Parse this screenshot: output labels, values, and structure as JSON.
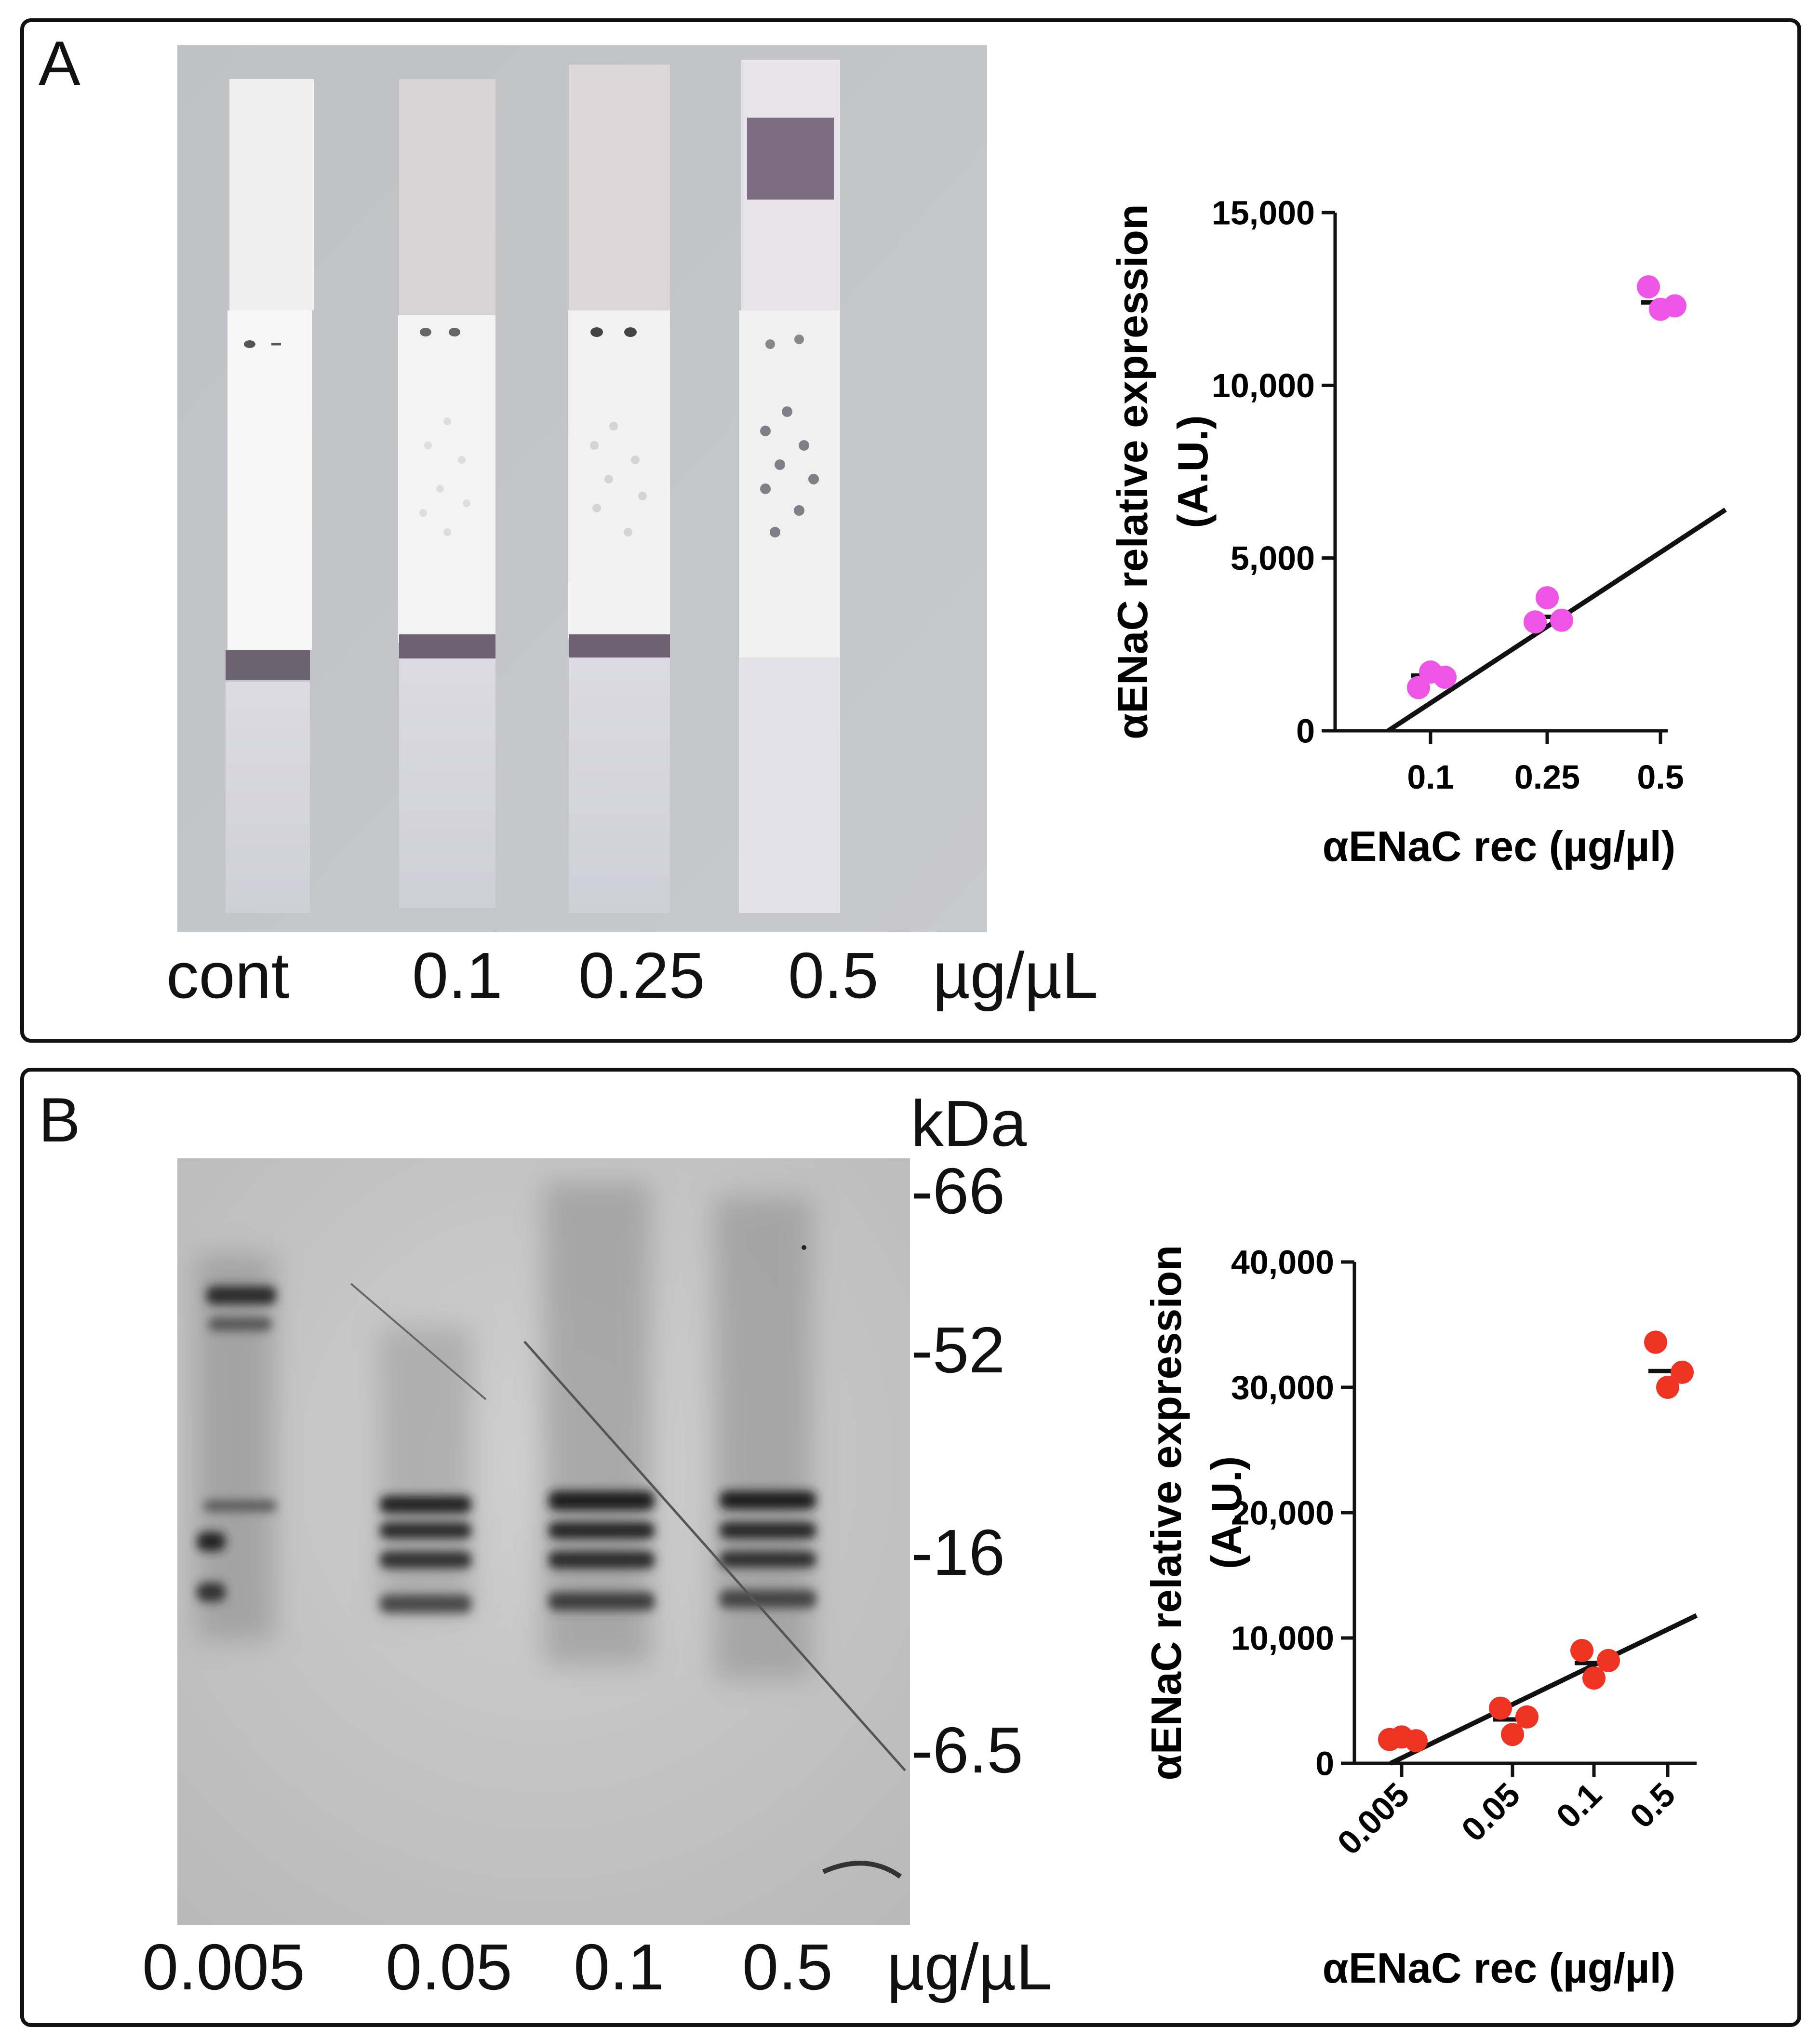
{
  "panel_a": {
    "letter": "A",
    "strip_labels": [
      "cont",
      "0.1",
      "0.25",
      "0.5"
    ],
    "unit": "µg/µL"
  },
  "panel_b": {
    "letter": "B",
    "lane_labels": [
      "0.005",
      "0.05",
      "0.1",
      "0.5"
    ],
    "unit": "µg/µL",
    "kda_title": "kDa",
    "kda_markers": [
      "-66",
      "-52",
      "-16",
      "-6.5"
    ]
  },
  "chart_data": [
    {
      "type": "scatter",
      "xlabel": "αENaC rec (µg/µl)",
      "ylabel_line1": "αENaC relative expression",
      "ylabel_line2": "(A.U.)",
      "categories": [
        "0.1",
        "0.25",
        "0.5"
      ],
      "ylim": [
        0,
        15000
      ],
      "yticks": [
        "0",
        "5,000",
        "10,000",
        "15,000"
      ],
      "points": [
        {
          "x": "0.1",
          "values": [
            1250,
            1700,
            1550
          ]
        },
        {
          "x": "0.25",
          "values": [
            3150,
            3850,
            3200
          ]
        },
        {
          "x": "0.5",
          "values": [
            12850,
            12200,
            12300
          ]
        }
      ],
      "means": [
        1600,
        3300,
        12400
      ],
      "fit_line": {
        "y_start": 0,
        "y_end": 6400
      },
      "color": "#ee55e6"
    },
    {
      "type": "scatter",
      "xlabel": "αENaC rec (µg/µl)",
      "ylabel_line1": "αENaC relative expression",
      "ylabel_line2": "(A.U.)",
      "categories": [
        "0.005",
        "0.05",
        "0.1",
        "0.5"
      ],
      "ylim": [
        0,
        40000
      ],
      "yticks": [
        "0",
        "10,000",
        "20,000",
        "30,000",
        "40,000"
      ],
      "points": [
        {
          "x": "0.005",
          "values": [
            1900,
            2100,
            1800
          ]
        },
        {
          "x": "0.05",
          "values": [
            4400,
            2300,
            3700
          ]
        },
        {
          "x": "0.1",
          "values": [
            9000,
            6800,
            8200
          ]
        },
        {
          "x": "0.5",
          "values": [
            33600,
            30000,
            31200
          ]
        }
      ],
      "means": [
        1950,
        3500,
        8000,
        31300
      ],
      "fit_line": {
        "y_start": 0,
        "y_end": 11800
      },
      "color": "#ee3322"
    }
  ]
}
